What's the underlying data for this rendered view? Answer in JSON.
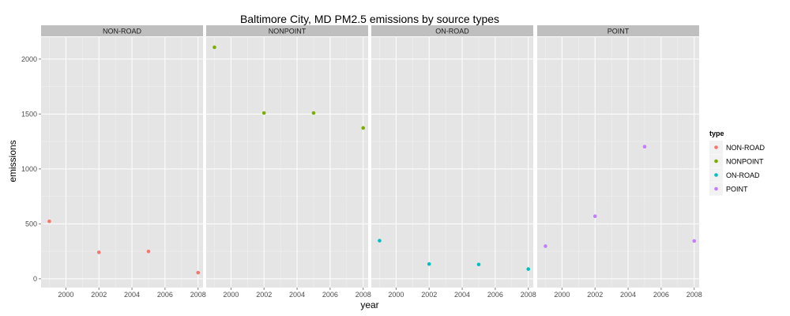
{
  "chart_data": {
    "type": "scatter",
    "title": "Baltimore City, MD PM2.5 emissions by source types",
    "xlabel": "year",
    "ylabel": "emissions",
    "x_ticks": [
      2000,
      2002,
      2004,
      2006,
      2008
    ],
    "y_ticks": [
      0,
      500,
      1000,
      1500,
      2000
    ],
    "xlim": [
      1998.5,
      2008.3
    ],
    "ylim": [
      -80,
      2200
    ],
    "grid": true,
    "legend": {
      "title": "type",
      "position": "right",
      "entries": [
        "NON-ROAD",
        "NONPOINT",
        "ON-ROAD",
        "POINT"
      ]
    },
    "panels": [
      {
        "label": "NON-ROAD",
        "color": "#F8766D",
        "points": [
          {
            "x": 1999,
            "y": 522.9
          },
          {
            "x": 2002,
            "y": 240.8
          },
          {
            "x": 2005,
            "y": 248.9
          },
          {
            "x": 2008,
            "y": 55.8
          }
        ]
      },
      {
        "label": "NONPOINT",
        "color": "#7CAE00",
        "points": [
          {
            "x": 1999,
            "y": 2107.6
          },
          {
            "x": 2002,
            "y": 1509.5
          },
          {
            "x": 2005,
            "y": 1509.5
          },
          {
            "x": 2008,
            "y": 1373.2
          }
        ]
      },
      {
        "label": "ON-ROAD",
        "color": "#00BFC4",
        "points": [
          {
            "x": 1999,
            "y": 346.8
          },
          {
            "x": 2002,
            "y": 134.3
          },
          {
            "x": 2005,
            "y": 130.4
          },
          {
            "x": 2008,
            "y": 88.3
          }
        ]
      },
      {
        "label": "POINT",
        "color": "#C77CFF",
        "points": [
          {
            "x": 1999,
            "y": 296.8
          },
          {
            "x": 2002,
            "y": 569.3
          },
          {
            "x": 2005,
            "y": 1202.5
          },
          {
            "x": 2008,
            "y": 344.2
          }
        ]
      }
    ]
  }
}
